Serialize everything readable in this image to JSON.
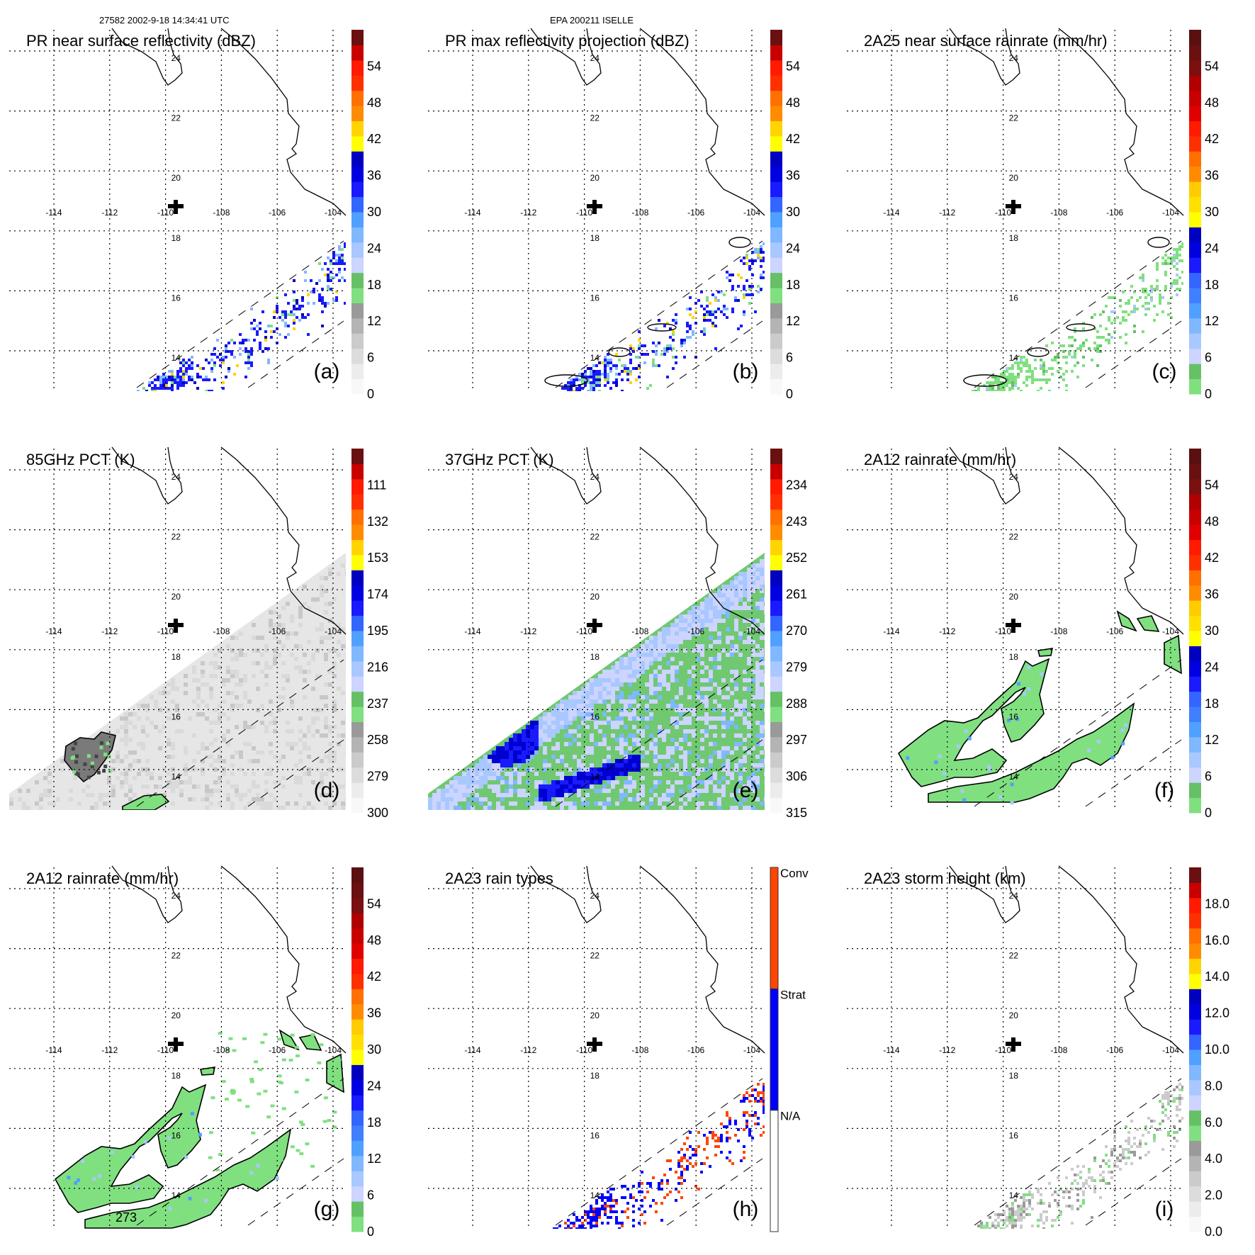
{
  "header": {
    "left": "27582 2002-9-18 14:34:41 UTC",
    "center": "EPA 200211 ISELLE"
  },
  "map": {
    "lon_labels": [
      "-114",
      "-112",
      "-110",
      "-108",
      "-106",
      "-104"
    ],
    "lat_labels": [
      "24",
      "22",
      "20",
      "18",
      "16",
      "14"
    ],
    "center_marker": "cross-icon"
  },
  "palettes": {
    "A": [
      "#f8f8f8",
      "#ececec",
      "#dcdcdc",
      "#cbcbcb",
      "#b4b4b4",
      "#9a9a9a",
      "#80e080",
      "#66c066",
      "#ccd4ff",
      "#a8c8ff",
      "#80b8ff",
      "#50a0ff",
      "#3366ff",
      "#1a1aff",
      "#0000e0",
      "#0000c0",
      "#ffff00",
      "#ffd400",
      "#ff8c00",
      "#ff7000",
      "#ff3000",
      "#ff1a00",
      "#c80000",
      "#6a1010"
    ],
    "C": [
      "#80e080",
      "#66c066",
      "#ccd4ff",
      "#a8c8ff",
      "#80b8ff",
      "#50a0ff",
      "#4080ff",
      "#3366ff",
      "#1a1aff",
      "#0000e0",
      "#0000c0",
      "#ffff00",
      "#ffe000",
      "#ffcc00",
      "#ff8c00",
      "#ff7000",
      "#ff3000",
      "#ff1a00",
      "#e00000",
      "#c80000",
      "#b00000",
      "#7a1010",
      "#6a1010",
      "#5a1010"
    ],
    "H": [
      "#ffffff",
      "#0000ff",
      "#ff4500"
    ]
  },
  "panels": [
    {
      "letter": "(a)",
      "title": "PR near surface reflectivity (dBZ)",
      "palette": "A",
      "kind": "pr_refl",
      "labels": [
        "0",
        "6",
        "12",
        "18",
        "24",
        "30",
        "36",
        "42",
        "48",
        "54"
      ]
    },
    {
      "letter": "(b)",
      "title": "PR max reflectivity projection (dBZ)",
      "palette": "A",
      "kind": "pr_max",
      "labels": [
        "0",
        "6",
        "12",
        "18",
        "24",
        "30",
        "36",
        "42",
        "48",
        "54"
      ]
    },
    {
      "letter": "(c)",
      "title": "2A25 near surface rainrate (mm/hr)",
      "palette": "C",
      "kind": "pr_rain",
      "labels": [
        "0",
        "6",
        "12",
        "18",
        "24",
        "30",
        "36",
        "42",
        "48",
        "54"
      ]
    },
    {
      "letter": "(d)",
      "title": "85GHz PCT (K)",
      "palette": "A",
      "kind": "pct85",
      "labels": [
        "300",
        "279",
        "258",
        "237",
        "216",
        "195",
        "174",
        "153",
        "132",
        "111"
      ]
    },
    {
      "letter": "(e)",
      "title": "37GHz PCT (K)",
      "palette": "A",
      "kind": "pct37",
      "labels": [
        "315",
        "306",
        "297",
        "288",
        "279",
        "270",
        "261",
        "252",
        "243",
        "234"
      ]
    },
    {
      "letter": "(f)",
      "title": "2A12 rainrate (mm/hr)",
      "palette": "C",
      "kind": "tmi_rain",
      "labels": [
        "0",
        "6",
        "12",
        "18",
        "24",
        "30",
        "36",
        "42",
        "48",
        "54"
      ]
    },
    {
      "letter": "(g)",
      "title": "2A12 rainrate (mm/hr)",
      "palette": "C",
      "kind": "tmi_rain2",
      "labels": [
        "0",
        "6",
        "12",
        "18",
        "24",
        "30",
        "36",
        "42",
        "48",
        "54"
      ],
      "contour_label": "273"
    },
    {
      "letter": "(h)",
      "title": "2A23 rain types",
      "palette": "H",
      "kind": "raintype",
      "categories": [
        "N/A",
        "Strat",
        "Conv"
      ]
    },
    {
      "letter": "(i)",
      "title": "2A23 storm height (km)",
      "palette": "A",
      "kind": "height",
      "labels": [
        "0.0",
        "2.0",
        "4.0",
        "6.0",
        "8.0",
        "10.0",
        "12.0",
        "14.0",
        "16.0",
        "18.0"
      ]
    }
  ]
}
